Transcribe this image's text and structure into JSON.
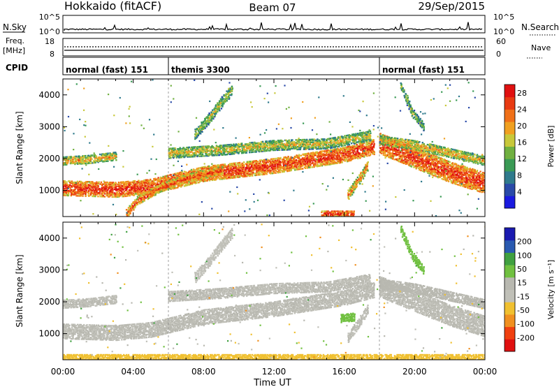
{
  "header": {
    "station": "Hokkaido (fitACF)",
    "beam": "Beam 07",
    "date": "29/Sep/2015"
  },
  "top_strip": {
    "left_label": "N.Sky",
    "right_label": "N.Search",
    "left_ticks": [
      "10^5",
      "10^0"
    ],
    "right_ticks": [
      "10^5",
      "10^0"
    ],
    "freq_label": "Freq.",
    "freq_unit": "[MHz]",
    "freq_ticks": [
      "18",
      "8"
    ],
    "nave_label": "Nave",
    "nave_ticks": [
      "60",
      "0"
    ],
    "cpid_label": "CPID",
    "cpid_segments": [
      {
        "name": "normal (fast) 151",
        "start_h": 0,
        "end_h": 6
      },
      {
        "name": "themis 3300",
        "start_h": 6,
        "end_h": 18
      },
      {
        "name": "normal (fast) 151",
        "start_h": 18,
        "end_h": 24
      }
    ]
  },
  "chart_data": [
    {
      "type": "heatmap",
      "panel": "power",
      "ylabel": "Slant Range [km]",
      "yticks": [
        1000,
        2000,
        3000,
        4000
      ],
      "ylim": [
        180,
        4500
      ],
      "xlim_hours": [
        0,
        24
      ],
      "colorbar": {
        "label": "Power [dB]",
        "ticks": [
          4,
          8,
          12,
          16,
          20,
          24,
          28
        ],
        "range": [
          0,
          30
        ],
        "colors": [
          "#1a1ae0",
          "#2a4aa8",
          "#2f7a8c",
          "#3a9a55",
          "#70b040",
          "#c8c83a",
          "#f0a020",
          "#f07018",
          "#e83a12",
          "#e01010"
        ]
      },
      "bands": [
        {
          "t": [
            0,
            3,
            5,
            8,
            12,
            16,
            17.7
          ],
          "r": [
            1100,
            1050,
            1150,
            1550,
            1800,
            2150,
            2400
          ],
          "w": 230,
          "value": 27
        },
        {
          "t": [
            0,
            1.5,
            3
          ],
          "r": [
            1950,
            2000,
            2100
          ],
          "w": 120,
          "value": 20
        },
        {
          "t": [
            3.6,
            4.2,
            5.5,
            7,
            9
          ],
          "r": [
            300,
            700,
            1100,
            1400,
            1650
          ],
          "w": 120,
          "value": 25
        },
        {
          "t": [
            6,
            9,
            12,
            15,
            17.5
          ],
          "r": [
            2200,
            2300,
            2450,
            2500,
            2750
          ],
          "w": 160,
          "value": 18
        },
        {
          "t": [
            7.5,
            8.3,
            9,
            9.6
          ],
          "r": [
            2800,
            3300,
            3800,
            4200
          ],
          "w": 160,
          "value": 16
        },
        {
          "t": [
            18,
            20,
            22,
            24
          ],
          "r": [
            2500,
            2050,
            1600,
            1250
          ],
          "w": 320,
          "value": 27
        },
        {
          "t": [
            18,
            20,
            22,
            24
          ],
          "r": [
            2600,
            2450,
            2200,
            1950
          ],
          "w": 140,
          "value": 20
        },
        {
          "t": [
            19.2,
            19.8,
            20.5
          ],
          "r": [
            4300,
            3500,
            3000
          ],
          "w": 120,
          "value": 16
        },
        {
          "t": [
            16.2,
            16.8,
            17.3
          ],
          "r": [
            900,
            1350,
            1800
          ],
          "w": 140,
          "value": 22
        },
        {
          "t": [
            14.7,
            16.5
          ],
          "r": [
            300,
            300
          ],
          "w": 80,
          "value": 28
        }
      ]
    },
    {
      "type": "heatmap",
      "panel": "velocity",
      "ylabel": "Slant Range [km]",
      "yticks": [
        1000,
        2000,
        3000,
        4000
      ],
      "ylim": [
        180,
        4500
      ],
      "xlim_hours": [
        0,
        24
      ],
      "colorbar": {
        "label": "Velocity [m s⁻¹]",
        "ticks": [
          200,
          100,
          50,
          15,
          -15,
          -50,
          -100,
          -200
        ],
        "range": [
          -250,
          250
        ],
        "colors": [
          "#e01010",
          "#f04010",
          "#f09020",
          "#f0c030",
          "#c0c0b8",
          "#b8b8b0",
          "#70c040",
          "#40a040",
          "#2a5ab0",
          "#1a1ab0"
        ]
      },
      "bands": [
        {
          "t": [
            0,
            3,
            5,
            8,
            12,
            16,
            17.7
          ],
          "r": [
            1100,
            1050,
            1150,
            1550,
            1800,
            2150,
            2400
          ],
          "w": 230,
          "value": 0
        },
        {
          "t": [
            0,
            1.5,
            3
          ],
          "r": [
            1950,
            2000,
            2100
          ],
          "w": 120,
          "value": 0
        },
        {
          "t": [
            6,
            9,
            12,
            15,
            17.5
          ],
          "r": [
            2200,
            2300,
            2450,
            2500,
            2750
          ],
          "w": 160,
          "value": 0
        },
        {
          "t": [
            7.5,
            8.3,
            9,
            9.6
          ],
          "r": [
            2800,
            3300,
            3800,
            4200
          ],
          "w": 160,
          "value": -40
        },
        {
          "t": [
            18,
            20,
            22,
            24
          ],
          "r": [
            2500,
            2050,
            1600,
            1250
          ],
          "w": 320,
          "value": 0
        },
        {
          "t": [
            18,
            20,
            22,
            24
          ],
          "r": [
            2600,
            2450,
            2200,
            1950
          ],
          "w": 140,
          "value": 40
        },
        {
          "t": [
            19.2,
            19.8,
            20.5
          ],
          "r": [
            4300,
            3500,
            3000
          ],
          "w": 120,
          "value": 60
        },
        {
          "t": [
            16.2,
            16.8,
            17.3
          ],
          "r": [
            900,
            1350,
            1800
          ],
          "w": 140,
          "value": 0
        },
        {
          "t": [
            15.8,
            16.6
          ],
          "r": [
            1500,
            1550
          ],
          "w": 120,
          "value": 70
        },
        {
          "t": [
            0,
            24
          ],
          "r": [
            280,
            280
          ],
          "w": 100,
          "value": -60
        }
      ]
    }
  ],
  "x_axis": {
    "label": "Time UT",
    "ticks": [
      "00:00",
      "04:00",
      "08:00",
      "12:00",
      "16:00",
      "20:00",
      "00:00"
    ]
  }
}
